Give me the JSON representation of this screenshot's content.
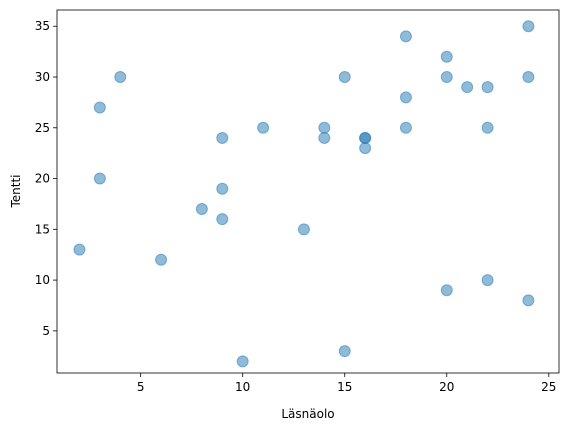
{
  "chart_data": {
    "type": "scatter",
    "x_label": "Läsnäolo",
    "y_label": "Tentti",
    "color": "#1f77b4",
    "opacity": 0.5,
    "x": [
      2,
      3,
      3,
      4,
      6,
      8,
      9,
      9,
      9,
      10,
      11,
      13,
      14,
      14,
      15,
      15,
      16,
      16,
      16,
      18,
      18,
      18,
      20,
      20,
      20,
      21,
      22,
      22,
      22,
      24,
      24,
      24
    ],
    "values": [
      13,
      27,
      20,
      30,
      12,
      17,
      24,
      19,
      16,
      2,
      25,
      15,
      25,
      24,
      30,
      3,
      24,
      24,
      23,
      34,
      28,
      25,
      32,
      30,
      9,
      29,
      29,
      25,
      10,
      35,
      30,
      8
    ],
    "xlim": [
      0.9,
      25.5
    ],
    "ylim": [
      0.85,
      36.6
    ],
    "xticks": [
      5,
      10,
      15,
      20,
      25
    ],
    "yticks": [
      5,
      10,
      15,
      20,
      25,
      30,
      35
    ],
    "grid": false
  }
}
